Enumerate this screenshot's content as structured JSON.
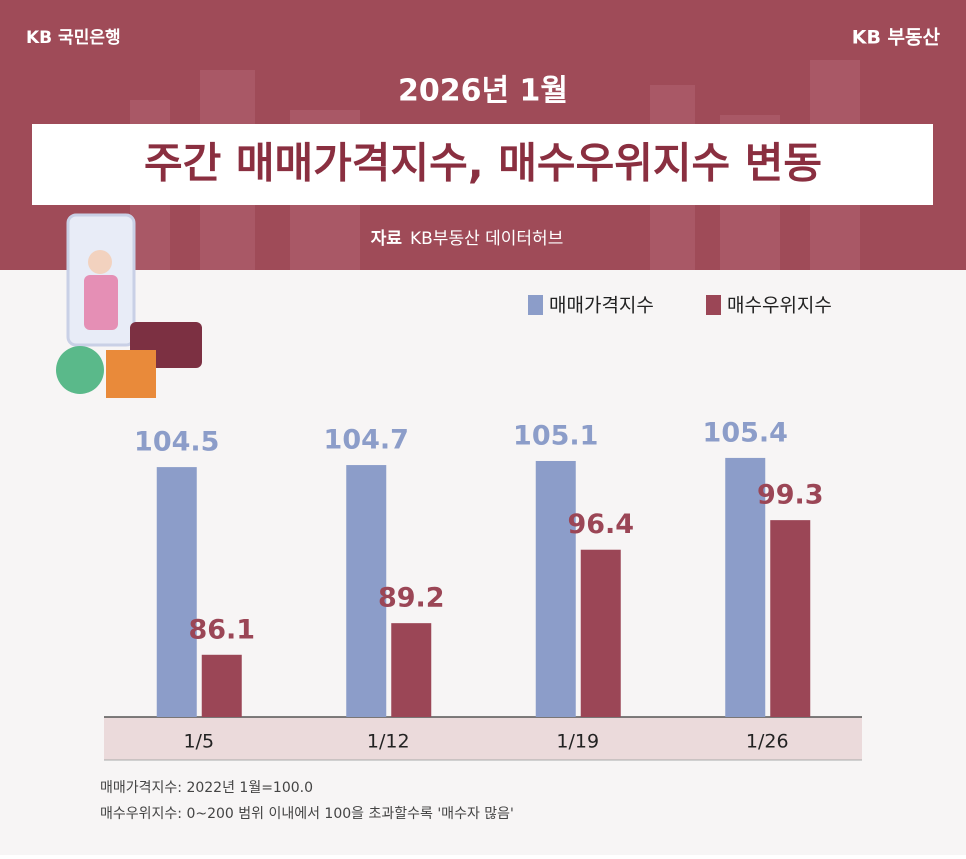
{
  "header": {
    "logo": "KB 국민은행",
    "brand": "KB 부동산"
  },
  "chart_data": {
    "type": "bar",
    "subtitle": "2026년 1월",
    "title": "주간 매매가격지수, 매수우위지수 변동",
    "source_label": "자료",
    "source": "KB부동산 데이터허브",
    "categories": [
      "1/5",
      "1/12",
      "1/19",
      "1/26"
    ],
    "series": [
      {
        "name": "매매가격지수",
        "color": "#8c9dc9",
        "values": [
          104.5,
          104.7,
          105.1,
          105.4
        ]
      },
      {
        "name": "매수우위지수",
        "color": "#9b4656",
        "values": [
          86.1,
          89.2,
          96.4,
          99.3
        ]
      }
    ],
    "ylim": [
      80,
      110
    ],
    "legend": "top-right"
  },
  "notes": [
    "매매가격지수: 2022년 1월=100.0",
    "매수우위지수: 0~200 범위 이내에서 100을 초과할수록 '매수자 많음'"
  ]
}
